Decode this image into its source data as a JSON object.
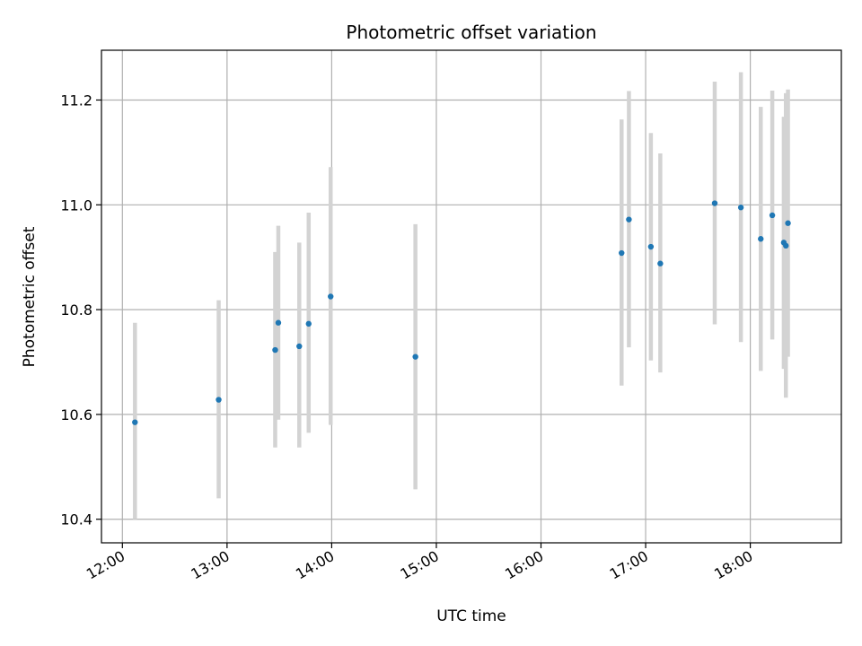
{
  "chart_data": {
    "type": "scatter",
    "title": "Photometric offset variation",
    "xlabel": "UTC time",
    "ylabel": "Photometric offset",
    "x_unit": "hours",
    "xlim": [
      11.8,
      18.87
    ],
    "ylim": [
      10.355,
      11.295
    ],
    "grid": true,
    "x_ticks": [
      {
        "value": 12,
        "label": "12:00"
      },
      {
        "value": 13,
        "label": "13:00"
      },
      {
        "value": 14,
        "label": "14:00"
      },
      {
        "value": 15,
        "label": "15:00"
      },
      {
        "value": 16,
        "label": "16:00"
      },
      {
        "value": 17,
        "label": "17:00"
      },
      {
        "value": 18,
        "label": "18:00"
      }
    ],
    "y_ticks": [
      {
        "value": 10.4,
        "label": "10.4"
      },
      {
        "value": 10.6,
        "label": "10.6"
      },
      {
        "value": 10.8,
        "label": "10.8"
      },
      {
        "value": 11.0,
        "label": "11.0"
      },
      {
        "value": 11.2,
        "label": "11.2"
      }
    ],
    "point_color": "#1f77b4",
    "errorbar_color": "#d3d3d3",
    "points": [
      {
        "x": 12.12,
        "y": 10.585,
        "ylow": 10.4,
        "yhigh": 10.775
      },
      {
        "x": 12.92,
        "y": 10.628,
        "ylow": 10.44,
        "yhigh": 10.818
      },
      {
        "x": 13.46,
        "y": 10.723,
        "ylow": 10.537,
        "yhigh": 10.91
      },
      {
        "x": 13.49,
        "y": 10.775,
        "ylow": 10.59,
        "yhigh": 10.96
      },
      {
        "x": 13.69,
        "y": 10.73,
        "ylow": 10.537,
        "yhigh": 10.928
      },
      {
        "x": 13.78,
        "y": 10.773,
        "ylow": 10.565,
        "yhigh": 10.985
      },
      {
        "x": 13.99,
        "y": 10.825,
        "ylow": 10.58,
        "yhigh": 11.072
      },
      {
        "x": 14.8,
        "y": 10.71,
        "ylow": 10.457,
        "yhigh": 10.963
      },
      {
        "x": 16.77,
        "y": 10.908,
        "ylow": 10.655,
        "yhigh": 11.163
      },
      {
        "x": 16.84,
        "y": 10.972,
        "ylow": 10.728,
        "yhigh": 11.217
      },
      {
        "x": 17.05,
        "y": 10.92,
        "ylow": 10.703,
        "yhigh": 11.137
      },
      {
        "x": 17.14,
        "y": 10.888,
        "ylow": 10.68,
        "yhigh": 11.098
      },
      {
        "x": 17.66,
        "y": 11.003,
        "ylow": 10.772,
        "yhigh": 11.235
      },
      {
        "x": 17.91,
        "y": 10.995,
        "ylow": 10.738,
        "yhigh": 11.253
      },
      {
        "x": 18.1,
        "y": 10.935,
        "ylow": 10.683,
        "yhigh": 11.187
      },
      {
        "x": 18.21,
        "y": 10.98,
        "ylow": 10.743,
        "yhigh": 11.218
      },
      {
        "x": 18.32,
        "y": 10.928,
        "ylow": 10.687,
        "yhigh": 11.168
      },
      {
        "x": 18.34,
        "y": 10.922,
        "ylow": 10.632,
        "yhigh": 11.213
      },
      {
        "x": 18.36,
        "y": 10.965,
        "ylow": 10.71,
        "yhigh": 11.22
      }
    ]
  }
}
